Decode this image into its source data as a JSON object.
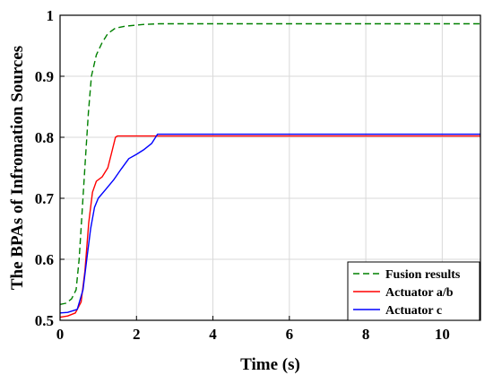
{
  "chart_data": {
    "type": "line",
    "title": "",
    "xlabel": "Time (s)",
    "ylabel": "The BPAs of Infromation Sources",
    "xlim": [
      0,
      11
    ],
    "ylim": [
      0.5,
      1
    ],
    "xticks": [
      0,
      2,
      4,
      6,
      8,
      10
    ],
    "yticks": [
      0.5,
      0.6,
      0.7,
      0.8,
      0.9,
      1
    ],
    "xtick_labels": [
      "0",
      "2",
      "4",
      "6",
      "8",
      "10"
    ],
    "ytick_labels": [
      "0.5",
      "0.6",
      "0.7",
      "0.8",
      "0.9",
      "1"
    ],
    "grid": true,
    "legend_position": "bottom-right",
    "series": [
      {
        "name": "Fusion results",
        "color": "#008000",
        "style": "dashed",
        "points": [
          [
            0,
            0.526
          ],
          [
            0.15,
            0.528
          ],
          [
            0.3,
            0.535
          ],
          [
            0.42,
            0.55
          ],
          [
            0.5,
            0.6
          ],
          [
            0.58,
            0.68
          ],
          [
            0.66,
            0.76
          ],
          [
            0.74,
            0.84
          ],
          [
            0.82,
            0.9
          ],
          [
            0.95,
            0.935
          ],
          [
            1.1,
            0.955
          ],
          [
            1.25,
            0.97
          ],
          [
            1.45,
            0.979
          ],
          [
            1.7,
            0.982
          ],
          [
            2.2,
            0.985
          ],
          [
            2.6,
            0.986
          ],
          [
            11,
            0.986
          ]
        ]
      },
      {
        "name": "Actuator a/b",
        "color": "#ff0000",
        "style": "solid",
        "points": [
          [
            0,
            0.505
          ],
          [
            0.2,
            0.507
          ],
          [
            0.4,
            0.512
          ],
          [
            0.55,
            0.53
          ],
          [
            0.65,
            0.58
          ],
          [
            0.75,
            0.66
          ],
          [
            0.85,
            0.71
          ],
          [
            0.95,
            0.728
          ],
          [
            1.1,
            0.735
          ],
          [
            1.25,
            0.75
          ],
          [
            1.35,
            0.775
          ],
          [
            1.45,
            0.8
          ],
          [
            1.5,
            0.802
          ],
          [
            11,
            0.802
          ]
        ]
      },
      {
        "name": "Actuator c",
        "color": "#0000ff",
        "style": "solid",
        "points": [
          [
            0,
            0.512
          ],
          [
            0.2,
            0.513
          ],
          [
            0.45,
            0.518
          ],
          [
            0.6,
            0.55
          ],
          [
            0.7,
            0.6
          ],
          [
            0.8,
            0.65
          ],
          [
            0.9,
            0.685
          ],
          [
            1.0,
            0.7
          ],
          [
            1.2,
            0.715
          ],
          [
            1.4,
            0.73
          ],
          [
            1.6,
            0.748
          ],
          [
            1.8,
            0.765
          ],
          [
            2.0,
            0.772
          ],
          [
            2.2,
            0.78
          ],
          [
            2.4,
            0.79
          ],
          [
            2.55,
            0.805
          ],
          [
            11,
            0.805
          ]
        ]
      }
    ]
  }
}
